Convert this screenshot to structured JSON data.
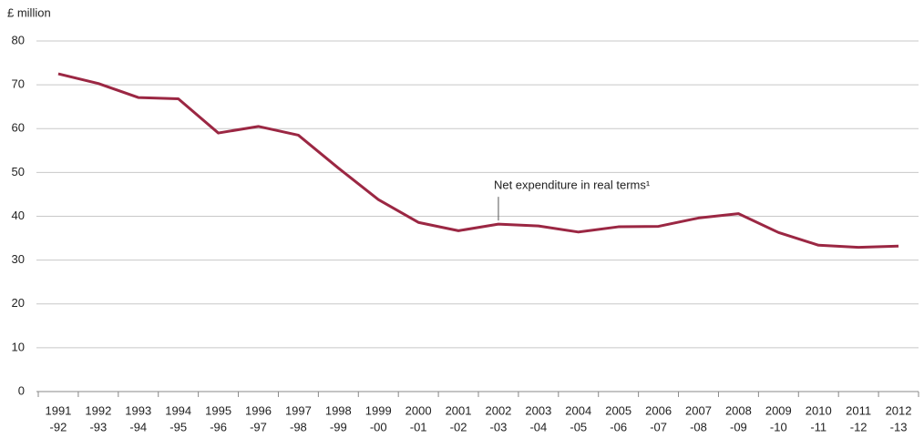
{
  "chart_data": {
    "type": "line",
    "y_axis_label": "£ million",
    "categories": [
      [
        "1991",
        "-92"
      ],
      [
        "1992",
        "-93"
      ],
      [
        "1993",
        "-94"
      ],
      [
        "1994",
        "-95"
      ],
      [
        "1995",
        "-96"
      ],
      [
        "1996",
        "-97"
      ],
      [
        "1997",
        "-98"
      ],
      [
        "1998",
        "-99"
      ],
      [
        "1999",
        "-00"
      ],
      [
        "2000",
        "-01"
      ],
      [
        "2001",
        "-02"
      ],
      [
        "2002",
        "-03"
      ],
      [
        "2003",
        "-04"
      ],
      [
        "2004",
        "-05"
      ],
      [
        "2005",
        "-06"
      ],
      [
        "2006",
        "-07"
      ],
      [
        "2007",
        "-08"
      ],
      [
        "2008",
        "-09"
      ],
      [
        "2009",
        "-10"
      ],
      [
        "2010",
        "-11"
      ],
      [
        "2011",
        "-12"
      ],
      [
        "2012",
        "-13"
      ]
    ],
    "series": [
      {
        "name": "Net expenditure in real terms¹",
        "color": "#9b2743",
        "values": [
          72.5,
          70.3,
          67.1,
          66.8,
          59.0,
          60.5,
          58.5,
          51.0,
          43.8,
          38.6,
          36.7,
          38.2,
          37.8,
          36.4,
          37.6,
          37.7,
          39.6,
          40.6,
          36.3,
          33.4,
          32.9,
          33.2
        ]
      }
    ],
    "ylim": [
      0,
      80
    ],
    "yticks": [
      0,
      10,
      20,
      30,
      40,
      50,
      60,
      70,
      80
    ],
    "grid": true,
    "annotation_index": 11
  }
}
